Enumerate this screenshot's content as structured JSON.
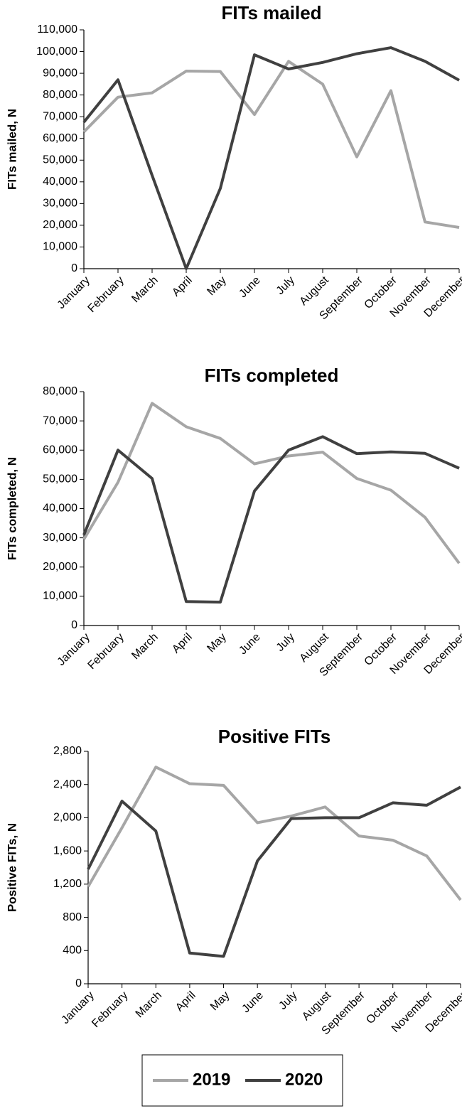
{
  "chart_data": [
    {
      "type": "line",
      "title": "FITs mailed",
      "y_label": "FITs mailed, N",
      "categories": [
        "January",
        "February",
        "March",
        "April",
        "May",
        "June",
        "July",
        "August",
        "September",
        "October",
        "November",
        "December"
      ],
      "series": [
        {
          "name": "2019",
          "color": "#a6a6a6",
          "values": [
            63000,
            79000,
            81000,
            91000,
            90800,
            71000,
            95500,
            85000,
            51500,
            82000,
            21500,
            19000
          ]
        },
        {
          "name": "2020",
          "color": "#404040",
          "values": [
            67500,
            87000,
            43000,
            0,
            37000,
            98500,
            92000,
            95000,
            99000,
            101800,
            95500,
            86800
          ]
        }
      ],
      "ylim": [
        0,
        110000
      ],
      "yticks": [
        0,
        {
          "value": 10000,
          "label": "10,000"
        },
        {
          "value": 20000,
          "label": "20,000"
        },
        {
          "value": 30000,
          "label": "30,000"
        },
        {
          "value": 40000,
          "label": "40,000"
        },
        {
          "value": 50000,
          "label": "50,000"
        },
        {
          "value": 60000,
          "label": "60,000"
        },
        {
          "value": 70000,
          "label": "70,000"
        },
        {
          "value": 80000,
          "label": "80,000"
        },
        {
          "value": 90000,
          "label": "90,000"
        },
        {
          "value": 100000,
          "label": "100,000"
        },
        {
          "value": 110000,
          "label": "110,000"
        }
      ],
      "grid": false
    },
    {
      "type": "line",
      "title": "FITs completed",
      "y_label": "FITs completed, N",
      "categories": [
        "January",
        "February",
        "March",
        "April",
        "May",
        "June",
        "July",
        "August",
        "September",
        "October",
        "November",
        "December"
      ],
      "series": [
        {
          "name": "2019",
          "color": "#a6a6a6",
          "values": [
            29500,
            49000,
            76000,
            68000,
            64000,
            55300,
            58000,
            59300,
            50300,
            46300,
            37000,
            21300
          ]
        },
        {
          "name": "2020",
          "color": "#404040",
          "values": [
            31000,
            60000,
            50300,
            8200,
            8000,
            46000,
            60000,
            64600,
            58800,
            59400,
            58900,
            53800
          ]
        }
      ],
      "ylim": [
        0,
        80000
      ],
      "yticks": [
        0,
        {
          "value": 10000,
          "label": "10,000"
        },
        {
          "value": 20000,
          "label": "20,000"
        },
        {
          "value": 30000,
          "label": "30,000"
        },
        {
          "value": 40000,
          "label": "40,000"
        },
        {
          "value": 50000,
          "label": "50,000"
        },
        {
          "value": 60000,
          "label": "60,000"
        },
        {
          "value": 70000,
          "label": "70,000"
        },
        {
          "value": 80000,
          "label": "80,000"
        }
      ],
      "grid": false
    },
    {
      "type": "line",
      "title": "Positive FITs",
      "y_label": "Positive FITs, N",
      "categories": [
        "January",
        "February",
        "March",
        "April",
        "May",
        "June",
        "July",
        "August",
        "September",
        "October",
        "November",
        "December"
      ],
      "series": [
        {
          "name": "2019",
          "color": "#a6a6a6",
          "values": [
            1170,
            1880,
            2610,
            2410,
            2390,
            1940,
            2020,
            2130,
            1780,
            1730,
            1540,
            1010
          ]
        },
        {
          "name": "2020",
          "color": "#404040",
          "values": [
            1380,
            2200,
            1840,
            370,
            330,
            1480,
            1990,
            2000,
            2000,
            2180,
            2150,
            2370
          ]
        }
      ],
      "ylim": [
        0,
        2800
      ],
      "yticks": [
        0,
        400,
        800,
        {
          "value": 1200,
          "label": "1,200"
        },
        {
          "value": 1600,
          "label": "1,600"
        },
        {
          "value": 2000,
          "label": "2,000"
        },
        {
          "value": 2400,
          "label": "2,400"
        },
        {
          "value": 2800,
          "label": "2,800"
        }
      ],
      "grid": false
    }
  ]
}
